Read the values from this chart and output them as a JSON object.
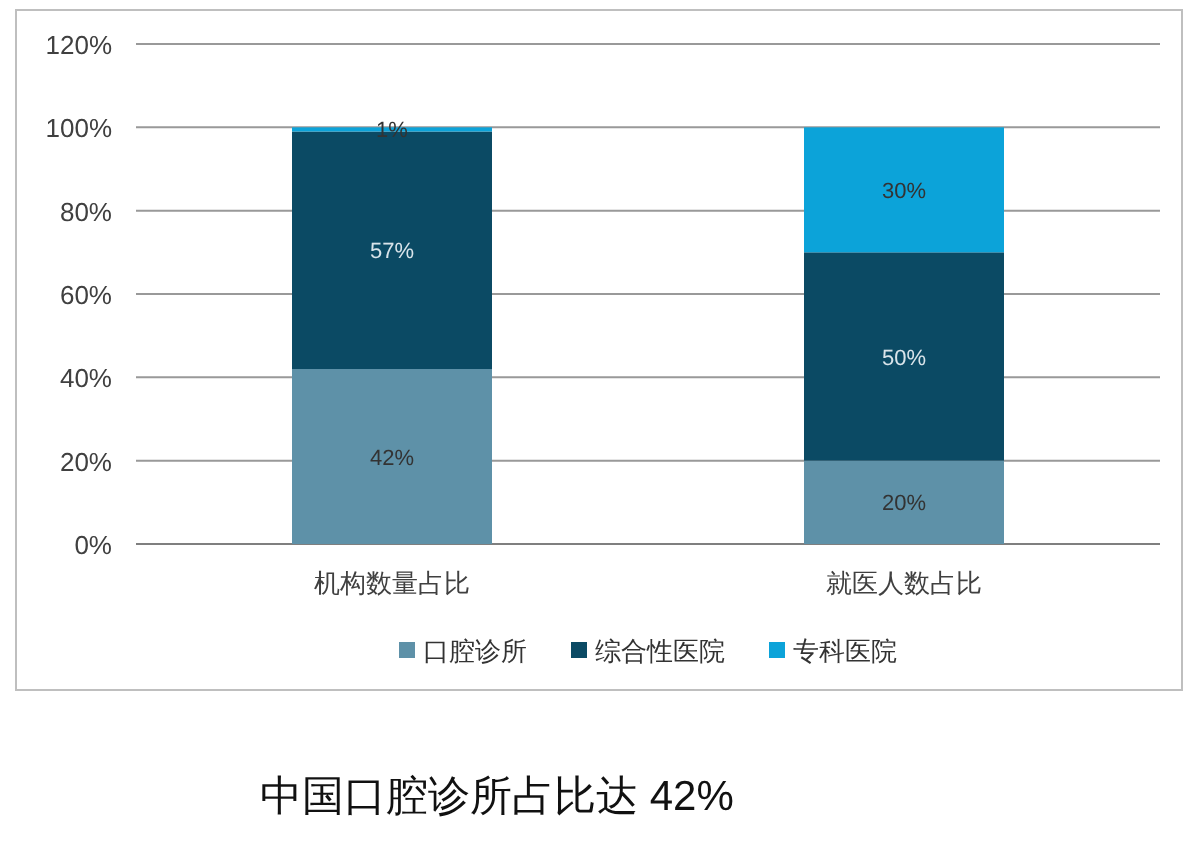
{
  "chart_data": {
    "type": "bar",
    "stacked": true,
    "categories": [
      "机构数量占比",
      "就医人数占比"
    ],
    "series": [
      {
        "name": "口腔诊所",
        "color": "#5e91a8",
        "values": [
          42,
          20
        ],
        "value_labels": [
          "42%",
          "20%"
        ]
      },
      {
        "name": "综合性医院",
        "color": "#0b4a64",
        "values": [
          57,
          50
        ],
        "value_labels": [
          "57%",
          "50%"
        ]
      },
      {
        "name": "专科医院",
        "color": "#0ca3d9",
        "values": [
          1,
          30
        ],
        "value_labels": [
          "1%",
          "30%"
        ]
      }
    ],
    "ylim": [
      0,
      120
    ],
    "yticks": [
      {
        "value": 0,
        "label": "0%"
      },
      {
        "value": 20,
        "label": "20%"
      },
      {
        "value": 40,
        "label": "40%"
      },
      {
        "value": 60,
        "label": "60%"
      },
      {
        "value": 80,
        "label": "80%"
      },
      {
        "value": 100,
        "label": "100%"
      },
      {
        "value": 120,
        "label": "120%"
      }
    ],
    "grid": "y",
    "legend": "bottom",
    "annotations": [
      "中国口腔诊所占比达 42%"
    ]
  }
}
